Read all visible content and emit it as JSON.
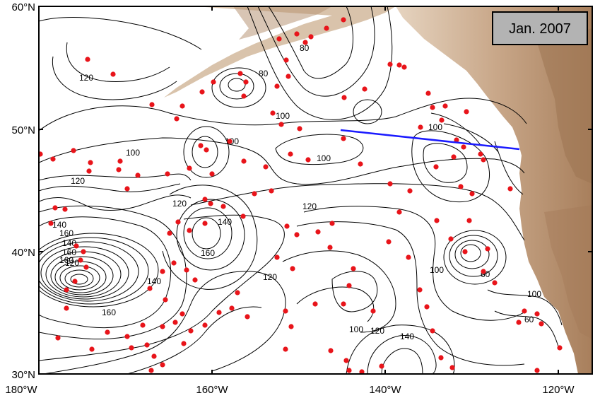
{
  "map": {
    "date_label": "Jan. 2007",
    "lat_labels": [
      "60°N",
      "50°N",
      "40°N",
      "30°N"
    ],
    "lon_labels": [
      "180°W",
      "160°W",
      "140°W",
      "120°W"
    ],
    "contour_labels": [
      "80",
      "80",
      "100",
      "100",
      "100",
      "100",
      "100",
      "100",
      "100",
      "100",
      "120",
      "120",
      "120",
      "120",
      "120",
      "120",
      "120",
      "140",
      "140",
      "140",
      "140",
      "140",
      "160",
      "160",
      "160",
      "160",
      "160",
      "60",
      "60"
    ],
    "colors": {
      "land": "#c9a88a",
      "land_dark": "#a07a58",
      "contour": "#000000",
      "float": "#e8141a",
      "transect": "#1a1aff",
      "label_box": "#b3b3b3"
    }
  }
}
